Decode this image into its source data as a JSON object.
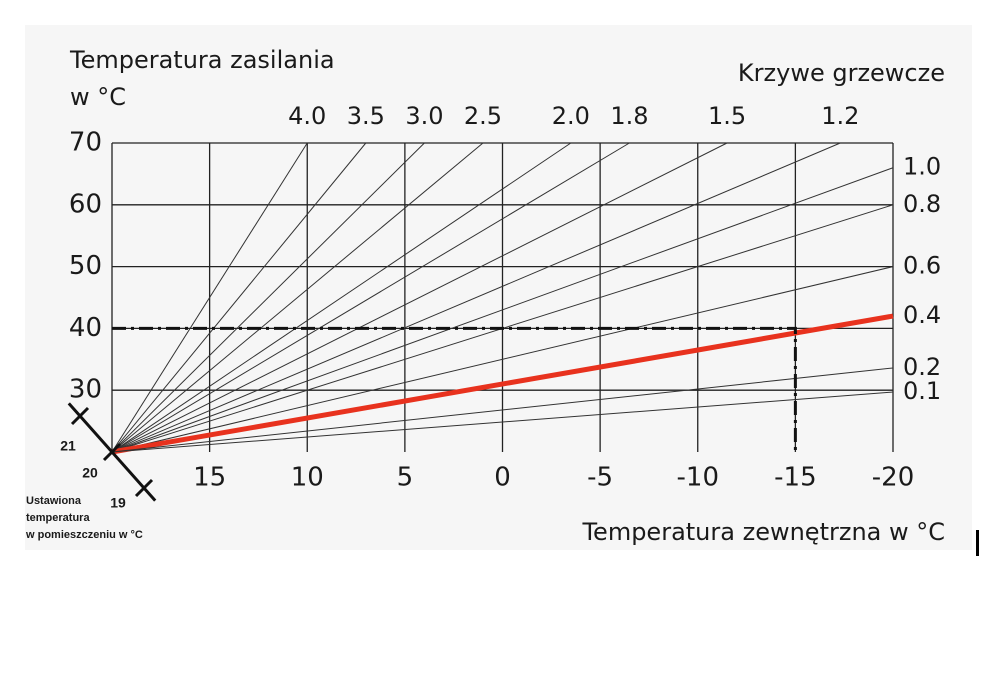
{
  "chart_data": {
    "type": "line",
    "ylabel": [
      "Temperatura zasilania",
      "w °C"
    ],
    "xlabel": "Temperatura zewnętrzna w °C",
    "legend_title": "Krzywe grzewcze",
    "xlim": [
      20,
      -20
    ],
    "xticks": [
      15,
      10,
      5,
      0,
      -5,
      -10,
      -15,
      -20
    ],
    "ylim": [
      20,
      70
    ],
    "yticks": [
      70,
      60,
      50,
      40,
      30
    ],
    "grid": true,
    "series": [
      {
        "name": "4.0",
        "color": "#333333",
        "x": [
          20,
          10
        ],
        "values": [
          20,
          70
        ]
      },
      {
        "name": "3.5",
        "color": "#333333",
        "x": [
          20,
          7
        ],
        "values": [
          20,
          70
        ]
      },
      {
        "name": "3.0",
        "color": "#333333",
        "x": [
          20,
          4
        ],
        "values": [
          20,
          70
        ]
      },
      {
        "name": "2.5",
        "color": "#333333",
        "x": [
          20,
          1
        ],
        "values": [
          20,
          70
        ]
      },
      {
        "name": "2.0",
        "color": "#333333",
        "x": [
          20,
          -3.5
        ],
        "values": [
          20,
          70
        ]
      },
      {
        "name": "1.8",
        "color": "#333333",
        "x": [
          20,
          -6.5
        ],
        "values": [
          20,
          70
        ]
      },
      {
        "name": "1.5",
        "color": "#333333",
        "x": [
          20,
          -11.5
        ],
        "values": [
          20,
          70
        ]
      },
      {
        "name": "1.2",
        "color": "#333333",
        "x": [
          20,
          -17.3
        ],
        "values": [
          20,
          70
        ]
      },
      {
        "name": "1.0",
        "color": "#333333",
        "x": [
          20,
          -20
        ],
        "values": [
          20,
          66
        ]
      },
      {
        "name": "0.8",
        "color": "#333333",
        "x": [
          20,
          -20
        ],
        "values": [
          20,
          60
        ]
      },
      {
        "name": "0.6",
        "color": "#333333",
        "x": [
          20,
          -20
        ],
        "values": [
          20,
          50
        ]
      },
      {
        "name": "0.4",
        "color": "#e8321e",
        "x": [
          20,
          -20
        ],
        "values": [
          20,
          42
        ]
      },
      {
        "name": "0.2",
        "color": "#333333",
        "x": [
          20,
          -20
        ],
        "values": [
          20,
          33.6
        ]
      },
      {
        "name": "0.1",
        "color": "#333333",
        "x": [
          20,
          -20
        ],
        "values": [
          20,
          29.7
        ]
      }
    ],
    "reference": {
      "x": -15,
      "y": 40
    },
    "room_axis": {
      "label": [
        "Ustawiona",
        "temperatura",
        "w pomieszczeniu w °C"
      ],
      "ticks": [
        21,
        20,
        19
      ]
    }
  }
}
